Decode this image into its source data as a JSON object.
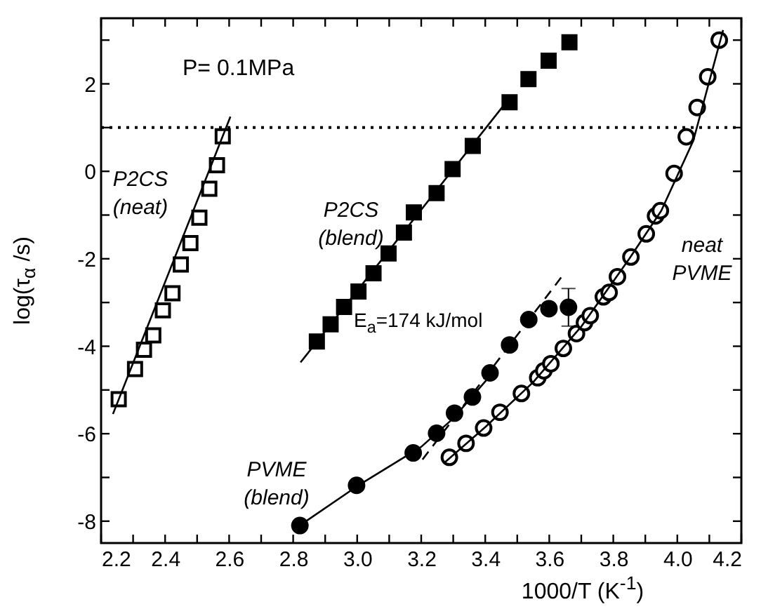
{
  "chart_data": {
    "type": "scatter",
    "xlabel": "1000/T  (K$^{-1}$)",
    "ylabel": "log(τ$_{α}$ /s)",
    "xlim": [
      2.2,
      4.2
    ],
    "xticks": [
      {
        "value": 2.2,
        "label": "2.2"
      },
      {
        "value": 2.3,
        "label": null
      },
      {
        "value": 2.4,
        "label": "2.4"
      },
      {
        "value": 2.5,
        "label": null
      },
      {
        "value": 2.6,
        "label": "2.6"
      },
      {
        "value": 2.7,
        "label": null
      },
      {
        "value": 2.8,
        "label": "2.8"
      },
      {
        "value": 2.9,
        "label": null
      },
      {
        "value": 3,
        "label": "3.0"
      },
      {
        "value": 3.1,
        "label": null
      },
      {
        "value": 3.2,
        "label": "3.2"
      },
      {
        "value": 3.3,
        "label": null
      },
      {
        "value": 3.4,
        "label": "3.4"
      },
      {
        "value": 3.5,
        "label": null
      },
      {
        "value": 3.6,
        "label": "3.6"
      },
      {
        "value": 3.7,
        "label": null
      },
      {
        "value": 3.8,
        "label": "3.8"
      },
      {
        "value": 3.9,
        "label": null
      },
      {
        "value": 4,
        "label": "4.0"
      },
      {
        "value": 4.1,
        "label": null
      },
      {
        "value": 4.2,
        "label": "4.2"
      }
    ],
    "ylim": [
      -8.5,
      3.5
    ],
    "yticks": [
      -8,
      {
        "value": -7,
        "label": null
      },
      -6,
      {
        "value": -5,
        "label": null
      },
      -4,
      {
        "value": -3,
        "label": null
      },
      -2,
      {
        "value": -1,
        "label": null
      },
      0,
      {
        "value": 1,
        "label": null
      },
      2,
      {
        "value": 3,
        "label": null
      }
    ],
    "grid": false,
    "series": [
      {
        "marker": "square",
        "color": "#000000",
        "x": [
          2.255,
          2.306,
          2.334,
          2.363,
          2.393,
          2.423,
          2.449,
          2.479,
          2.507,
          2.538,
          2.562,
          2.58
        ],
        "values": [
          -5.21,
          -4.52,
          -4.08,
          -3.75,
          -3.18,
          -2.79,
          -2.13,
          -1.64,
          -1.06,
          -0.4,
          0.14,
          0.8
        ]
      },
      {
        "type": "line",
        "line_style": "solid",
        "color": "#000000",
        "x": [
          2.237,
          2.604
        ],
        "values": [
          -5.55,
          1.25
        ]
      },
      {
        "marker": "square",
        "color": "#000000",
        "x": [
          2.874,
          2.917,
          2.959,
          3.004,
          3.051,
          3.098,
          3.146,
          3.177,
          3.248,
          3.298,
          3.361,
          3.476,
          3.535,
          3.598,
          3.663
        ],
        "values": [
          -3.89,
          -3.5,
          -3.1,
          -2.75,
          -2.33,
          -1.88,
          -1.4,
          -0.94,
          -0.5,
          0.05,
          0.58,
          1.58,
          2.11,
          2.53,
          2.95
        ]
      },
      {
        "type": "line",
        "line_style": "solid",
        "color": "#000000",
        "x": [
          2.823,
          3.459
        ],
        "values": [
          -4.37,
          1.52
        ]
      },
      {
        "marker": "circle",
        "color": "#000000",
        "x": [
          2.821,
          2.998,
          3.175,
          3.248,
          3.304,
          3.36,
          3.415,
          3.476,
          3.536,
          3.599,
          3.66
        ],
        "values": [
          -8.1,
          -7.18,
          -6.44,
          -5.99,
          -5.53,
          -5.16,
          -4.61,
          -3.97,
          -3.39,
          -3.14,
          -3.11
        ],
        "errors": [
          null,
          null,
          null,
          null,
          null,
          null,
          null,
          null,
          null,
          null,
          0.43
        ]
      },
      {
        "type": "line",
        "line_style": "solid",
        "color": "#000000",
        "x": [
          2.82,
          3.0,
          3.2,
          3.3,
          3.43
        ],
        "values": [
          -8.1,
          -7.2,
          -6.3,
          -5.65,
          -4.55
        ]
      },
      {
        "type": "line",
        "line_style": "dashed",
        "color": "#000000",
        "x": [
          3.204,
          3.641
        ],
        "values": [
          -6.59,
          -2.39
        ]
      },
      {
        "marker": "circle",
        "color": "#000000",
        "x": [
          3.288,
          3.34,
          3.395,
          3.446,
          3.513,
          3.564,
          3.583,
          3.605,
          3.644,
          3.685,
          3.71,
          3.728,
          3.769,
          3.787,
          3.813,
          3.855,
          3.903,
          3.932,
          3.947,
          3.99,
          4.028,
          4.062,
          4.095,
          4.131
        ],
        "values": [
          -6.54,
          -6.22,
          -5.87,
          -5.51,
          -5.08,
          -4.72,
          -4.56,
          -4.4,
          -4.05,
          -3.71,
          -3.46,
          -3.3,
          -2.87,
          -2.77,
          -2.41,
          -1.96,
          -1.43,
          -1.02,
          -0.9,
          -0.05,
          0.79,
          1.46,
          2.16,
          3.0
        ]
      },
      {
        "type": "line",
        "line_style": "solid",
        "color": "#000000",
        "x": [
          3.27,
          3.4,
          3.55,
          3.7,
          3.85,
          3.95,
          4.05,
          4.143
        ],
        "values": [
          -6.68,
          -5.85,
          -4.82,
          -3.55,
          -2.0,
          -0.9,
          0.7,
          3.23
        ]
      }
    ],
    "ref_lines": [
      {
        "axis": "y",
        "value": 1,
        "line_style": "dotted",
        "color": "#000000"
      }
    ],
    "annotations": [
      "P= 0.1MPa",
      "P2CS\n(neat)",
      "P2CS\n(blend)",
      "PVME\n(blend)",
      "neat\nPVME",
      "E$_{a}$=174 kJ/mol"
    ]
  }
}
